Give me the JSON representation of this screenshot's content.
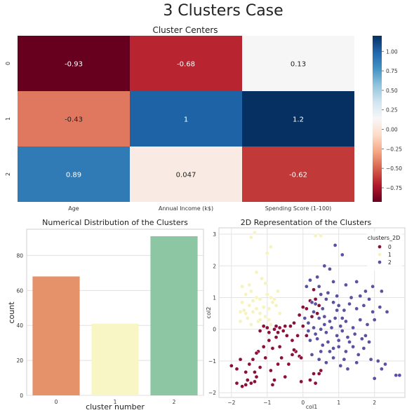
{
  "figure": {
    "title": "3 Clusters Case"
  },
  "chart_data": [
    {
      "type": "heatmap",
      "title": "Cluster Centers",
      "row_labels": [
        "0",
        "1",
        "2"
      ],
      "col_labels": [
        "Age",
        "Annual Income (k$)",
        "Spending Score (1-100)"
      ],
      "values": [
        [
          -0.93,
          -0.68,
          0.13
        ],
        [
          -0.43,
          1.0,
          1.2
        ],
        [
          0.89,
          0.047,
          -0.62
        ]
      ],
      "value_labels": [
        [
          "-0.93",
          "-0.68",
          "0.13"
        ],
        [
          "-0.43",
          "1",
          "1.2"
        ],
        [
          "0.89",
          "0.047",
          "-0.62"
        ]
      ],
      "colormap": "RdBu",
      "vmin": -0.93,
      "vmax": 1.2,
      "colorbar_ticks": [
        1.0,
        0.75,
        0.5,
        0.25,
        0.0,
        -0.25,
        -0.5,
        -0.75
      ],
      "colorbar_tick_labels": [
        "1.00",
        "0.75",
        "0.50",
        "0.25",
        "0.00",
        "−0.25",
        "−0.50",
        "−0.75"
      ]
    },
    {
      "type": "bar",
      "title": "Numerical Distribution of the Clusters",
      "xlabel": "cluster number",
      "ylabel": "count",
      "categories": [
        "0",
        "1",
        "2"
      ],
      "values": [
        68,
        41,
        91
      ],
      "colors": [
        "#e5926a",
        "#f9f6c5",
        "#8cc6a3"
      ],
      "ylim": [
        0,
        95
      ],
      "yticks": [
        0,
        20,
        40,
        60,
        80
      ],
      "grid": true
    },
    {
      "type": "scatter",
      "title": "2D Representation of the Clusters",
      "xlabel": "col1",
      "ylabel": "col2",
      "xlim": [
        -2.35,
        2.85
      ],
      "ylim": [
        -2.15,
        3.2
      ],
      "xticks": [
        -2,
        -1,
        0,
        1,
        2
      ],
      "yticks": [
        -2,
        -1,
        0,
        1,
        2,
        3
      ],
      "grid": true,
      "legend": {
        "title": "clusters_2D",
        "placement": "top-right"
      },
      "series": [
        {
          "name": "0",
          "color": "#8b0f3a",
          "points": [
            [
              -1.85,
              -1.7
            ],
            [
              -1.7,
              -1.8
            ],
            [
              -1.6,
              -1.75
            ],
            [
              -1.55,
              -1.6
            ],
            [
              -1.45,
              -1.7
            ],
            [
              -1.35,
              -1.65
            ],
            [
              -1.3,
              -1.5
            ],
            [
              -2.0,
              -1.15
            ],
            [
              -1.75,
              -0.95
            ],
            [
              -1.5,
              -1.1
            ],
            [
              -1.4,
              -0.95
            ],
            [
              -1.35,
              -1.35
            ],
            [
              -1.2,
              -1.2
            ],
            [
              -1.05,
              -0.9
            ],
            [
              -0.9,
              -1.3
            ],
            [
              -0.85,
              -1.75
            ],
            [
              -0.7,
              -1.1
            ],
            [
              -0.6,
              -0.9
            ],
            [
              -0.5,
              -1.5
            ],
            [
              -0.4,
              -1.1
            ],
            [
              -1.85,
              -1.25
            ],
            [
              -1.1,
              -0.55
            ],
            [
              -0.95,
              -0.35
            ],
            [
              -0.85,
              -0.6
            ],
            [
              -0.75,
              -0.25
            ],
            [
              -0.65,
              -0.55
            ],
            [
              -1.2,
              -0.05
            ],
            [
              -1.1,
              0.1
            ],
            [
              -1.0,
              0.05
            ],
            [
              -0.95,
              -0.1
            ],
            [
              -0.9,
              0.15
            ],
            [
              -0.8,
              0.0
            ],
            [
              -0.75,
              0.1
            ],
            [
              -0.7,
              -0.1
            ],
            [
              -0.65,
              0.05
            ],
            [
              -0.55,
              -0.05
            ],
            [
              -0.5,
              0.1
            ],
            [
              -0.45,
              -0.2
            ],
            [
              -0.35,
              0.1
            ],
            [
              -0.3,
              -0.35
            ],
            [
              -0.25,
              0.2
            ],
            [
              -0.2,
              -0.7
            ],
            [
              -0.15,
              -0.2
            ],
            [
              -0.1,
              0.45
            ],
            [
              0.0,
              0.7
            ],
            [
              0.1,
              0.65
            ],
            [
              0.2,
              0.9
            ],
            [
              0.3,
              1.25
            ],
            [
              0.35,
              0.95
            ],
            [
              0.45,
              0.75
            ],
            [
              0.25,
              0.4
            ],
            [
              0.4,
              0.5
            ],
            [
              0.0,
              0.1
            ],
            [
              0.1,
              -0.2
            ],
            [
              -0.25,
              -0.65
            ],
            [
              -0.3,
              -0.8
            ],
            [
              0.3,
              -1.4
            ],
            [
              0.35,
              -1.7
            ],
            [
              0.45,
              -1.4
            ],
            [
              0.2,
              -1.6
            ],
            [
              0.5,
              -1.3
            ],
            [
              -0.05,
              -1.65
            ],
            [
              -0.1,
              -0.85
            ],
            [
              -0.05,
              -0.9
            ],
            [
              -1.6,
              -1.35
            ],
            [
              -1.25,
              -0.7
            ],
            [
              -1.3,
              -0.75
            ],
            [
              -0.8,
              -1.6
            ]
          ]
        },
        {
          "name": "1",
          "color": "#f6f3bd",
          "points": [
            [
              -1.35,
              3.05
            ],
            [
              -0.9,
              2.6
            ],
            [
              -1.0,
              2.4
            ],
            [
              -1.45,
              2.9
            ],
            [
              -1.7,
              1.35
            ],
            [
              -1.5,
              1.4
            ],
            [
              -1.6,
              1.1
            ],
            [
              -1.45,
              1.2
            ],
            [
              -1.3,
              1.0
            ],
            [
              -1.4,
              0.9
            ],
            [
              -1.2,
              0.95
            ],
            [
              -1.0,
              1.1
            ],
            [
              -0.9,
              1.0
            ],
            [
              -0.85,
              0.85
            ],
            [
              -0.75,
              0.75
            ],
            [
              -0.95,
              0.65
            ],
            [
              -1.1,
              0.7
            ],
            [
              -1.3,
              0.65
            ],
            [
              -1.5,
              0.75
            ],
            [
              -1.7,
              0.85
            ],
            [
              -1.75,
              0.55
            ],
            [
              -1.6,
              0.5
            ],
            [
              -1.4,
              0.55
            ],
            [
              -1.2,
              0.5
            ],
            [
              -1.05,
              0.4
            ],
            [
              -0.95,
              0.3
            ],
            [
              -1.25,
              0.25
            ],
            [
              -1.55,
              0.35
            ],
            [
              -0.8,
              0.95
            ],
            [
              -0.7,
              1.2
            ],
            [
              -1.15,
              1.6
            ],
            [
              -1.3,
              1.8
            ],
            [
              -1.05,
              1.45
            ],
            [
              -0.65,
              0.5
            ],
            [
              -1.75,
              0.25
            ],
            [
              -1.45,
              0.15
            ],
            [
              -1.65,
              0.6
            ],
            [
              -0.9,
              0.15
            ],
            [
              0.35,
              2.95
            ],
            [
              0.5,
              2.95
            ],
            [
              -1.2,
              0.3
            ]
          ]
        },
        {
          "name": "2",
          "color": "#5a52a0",
          "points": [
            [
              0.9,
              2.65
            ],
            [
              1.1,
              2.35
            ],
            [
              0.6,
              2.0
            ],
            [
              0.75,
              1.9
            ],
            [
              0.4,
              1.65
            ],
            [
              0.2,
              1.55
            ],
            [
              0.1,
              1.35
            ],
            [
              0.5,
              1.1
            ],
            [
              0.7,
              1.15
            ],
            [
              0.95,
              1.05
            ],
            [
              1.2,
              1.4
            ],
            [
              1.5,
              1.5
            ],
            [
              1.75,
              1.2
            ],
            [
              1.95,
              1.35
            ],
            [
              2.2,
              1.2
            ],
            [
              0.85,
              0.85
            ],
            [
              1.0,
              0.75
            ],
            [
              1.15,
              0.6
            ],
            [
              1.3,
              0.8
            ],
            [
              1.5,
              0.65
            ],
            [
              1.7,
              0.75
            ],
            [
              1.95,
              0.55
            ],
            [
              2.15,
              0.7
            ],
            [
              0.3,
              0.55
            ],
            [
              0.45,
              0.35
            ],
            [
              0.6,
              0.4
            ],
            [
              0.75,
              0.25
            ],
            [
              0.9,
              0.35
            ],
            [
              1.05,
              0.1
            ],
            [
              1.2,
              0.25
            ],
            [
              1.4,
              0.05
            ],
            [
              1.6,
              0.3
            ],
            [
              1.8,
              0.15
            ],
            [
              2.0,
              0.3
            ],
            [
              0.15,
              0.2
            ],
            [
              0.3,
              0.05
            ],
            [
              0.5,
              0.0
            ],
            [
              0.65,
              -0.1
            ],
            [
              0.8,
              0.05
            ],
            [
              0.95,
              -0.2
            ],
            [
              1.1,
              -0.05
            ],
            [
              1.25,
              -0.25
            ],
            [
              1.45,
              -0.15
            ],
            [
              1.65,
              -0.3
            ],
            [
              1.85,
              -0.4
            ],
            [
              0.2,
              -0.35
            ],
            [
              0.4,
              -0.3
            ],
            [
              0.55,
              -0.5
            ],
            [
              0.7,
              -0.4
            ],
            [
              0.85,
              -0.6
            ],
            [
              1.0,
              -0.55
            ],
            [
              1.2,
              -0.7
            ],
            [
              1.4,
              -0.55
            ],
            [
              1.55,
              -0.8
            ],
            [
              1.7,
              -0.6
            ],
            [
              1.9,
              -0.95
            ],
            [
              2.1,
              -1.0
            ],
            [
              2.3,
              -1.1
            ],
            [
              0.25,
              -0.8
            ],
            [
              0.45,
              -0.95
            ],
            [
              0.65,
              -1.05
            ],
            [
              0.85,
              -0.9
            ],
            [
              1.05,
              -1.15
            ],
            [
              1.25,
              -1.25
            ],
            [
              1.5,
              -1.05
            ],
            [
              2.0,
              -1.55
            ],
            [
              2.6,
              -1.45
            ],
            [
              2.7,
              -1.45
            ],
            [
              2.2,
              -1.25
            ],
            [
              0.35,
              0.8
            ],
            [
              0.55,
              0.65
            ],
            [
              0.05,
              0.35
            ],
            [
              0.85,
              1.5
            ],
            [
              1.35,
              1.0
            ],
            [
              1.6,
              1.05
            ],
            [
              0.95,
              0.6
            ],
            [
              1.1,
              0.35
            ],
            [
              0.6,
              0.15
            ],
            [
              0.35,
              -0.15
            ],
            [
              1.3,
              -0.4
            ],
            [
              0.75,
              -0.7
            ],
            [
              1.75,
              -0.2
            ],
            [
              0.45,
              1.35
            ],
            [
              2.35,
              0.55
            ],
            [
              1.0,
              -0.35
            ],
            [
              0.15,
              -0.05
            ],
            [
              0.65,
              0.95
            ],
            [
              1.85,
              0.95
            ],
            [
              0.25,
              0.85
            ],
            [
              0.5,
              -0.7
            ],
            [
              1.15,
              -0.95
            ]
          ]
        }
      ]
    }
  ]
}
